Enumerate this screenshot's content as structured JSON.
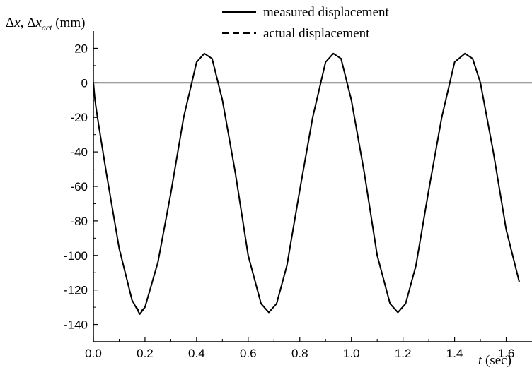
{
  "chart_data": {
    "type": "line",
    "ylabel": {
      "part1": "Δ",
      "part2": "x",
      "part3": ", Δ",
      "part4": "x",
      "part5": "act",
      "part6": " (mm)"
    },
    "xlabel": {
      "var": "t",
      "unit": " (sec)"
    },
    "xlim": [
      0.0,
      1.7
    ],
    "ylim": [
      -150,
      30
    ],
    "x_ticks": [
      "0.0",
      "0.2",
      "0.4",
      "0.6",
      "0.8",
      "1.0",
      "1.2",
      "1.4",
      "1.6"
    ],
    "y_ticks": [
      "20",
      "0",
      "-20",
      "-40",
      "-60",
      "-80",
      "-100",
      "-120",
      "-140"
    ],
    "x_tick_values": [
      0.0,
      0.2,
      0.4,
      0.6,
      0.8,
      1.0,
      1.2,
      1.4,
      1.6
    ],
    "y_tick_values": [
      20,
      0,
      -20,
      -40,
      -60,
      -80,
      -100,
      -120,
      -140
    ],
    "reference_line_y": 0,
    "legend_position": "top-right",
    "series": [
      {
        "name": "measured displacement",
        "style": "solid",
        "x": [
          0.0,
          0.005,
          0.01,
          0.02,
          0.05,
          0.1,
          0.15,
          0.18,
          0.2,
          0.25,
          0.3,
          0.35,
          0.4,
          0.43,
          0.46,
          0.5,
          0.55,
          0.6,
          0.65,
          0.68,
          0.71,
          0.75,
          0.8,
          0.85,
          0.9,
          0.93,
          0.96,
          1.0,
          1.05,
          1.1,
          1.15,
          1.18,
          1.21,
          1.25,
          1.3,
          1.35,
          1.4,
          1.44,
          1.47,
          1.5,
          1.55,
          1.6,
          1.65
        ],
        "values": [
          0,
          -8,
          -14,
          -24,
          -52,
          -96,
          -126,
          -134,
          -130,
          -104,
          -64,
          -20,
          12,
          17,
          14,
          -10,
          -52,
          -100,
          -128,
          -133,
          -128,
          -106,
          -62,
          -20,
          12,
          17,
          14,
          -10,
          -52,
          -100,
          -128,
          -133,
          -128,
          -106,
          -62,
          -20,
          12,
          17,
          14,
          0,
          -40,
          -85,
          -115
        ]
      },
      {
        "name": "actual displacement",
        "style": "dashed",
        "x": [
          0.0,
          0.005,
          0.01,
          0.02,
          0.05,
          0.1,
          0.15,
          0.18,
          0.2,
          0.25,
          0.3,
          0.35,
          0.4,
          0.43,
          0.46,
          0.5,
          0.55,
          0.6,
          0.65,
          0.68,
          0.71,
          0.75,
          0.8,
          0.85,
          0.9,
          0.93,
          0.96,
          1.0,
          1.05,
          1.1,
          1.15,
          1.18,
          1.21,
          1.25,
          1.3,
          1.35,
          1.4,
          1.44,
          1.47,
          1.5,
          1.55,
          1.6,
          1.65
        ],
        "values": [
          0,
          -8,
          -14,
          -24,
          -52,
          -96,
          -126,
          -133,
          -130,
          -104,
          -64,
          -20,
          12,
          17,
          14,
          -10,
          -52,
          -100,
          -128,
          -133,
          -128,
          -106,
          -62,
          -20,
          12,
          17,
          14,
          -10,
          -52,
          -100,
          -128,
          -133,
          -128,
          -106,
          -62,
          -20,
          12,
          17,
          14,
          0,
          -40,
          -85,
          -115
        ]
      }
    ]
  }
}
